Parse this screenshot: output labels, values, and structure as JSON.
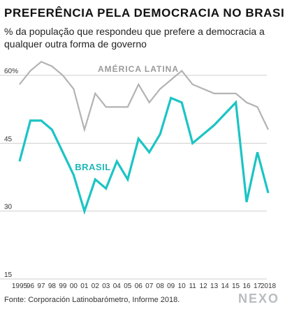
{
  "header": {
    "title": "PREFERÊNCIA PELA DEMOCRACIA NO BRASIL",
    "subtitle": "% da população que respondeu que prefere a democracia a qualquer outra forma de governo"
  },
  "footer": {
    "source": "Fonte: Corporación Latinobarómetro, Informe 2018.",
    "brand": "NEXO"
  },
  "chart_data": {
    "type": "line",
    "title": "PREFERÊNCIA PELA DEMOCRACIA NO BRASIL",
    "subtitle": "% da população que respondeu que prefere a democracia a qualquer outra forma de governo",
    "xlabel": "",
    "ylabel": "",
    "x": [
      1995,
      1996,
      1997,
      1998,
      1999,
      2000,
      2001,
      2002,
      2003,
      2004,
      2005,
      2006,
      2007,
      2008,
      2009,
      2010,
      2011,
      2013,
      2015,
      2016,
      2017,
      2018
    ],
    "x_tick_labels": [
      "1995",
      "96",
      "97",
      "98",
      "99",
      "00",
      "01",
      "02",
      "03",
      "04",
      "05",
      "06",
      "07",
      "08",
      "09",
      "10",
      "11",
      "12",
      "13",
      "14",
      "15",
      "16",
      "17",
      "2018"
    ],
    "x_tick_years": [
      1995,
      1996,
      1997,
      1998,
      1999,
      2000,
      2001,
      2002,
      2003,
      2004,
      2005,
      2006,
      2007,
      2008,
      2009,
      2010,
      2011,
      2012,
      2013,
      2014,
      2015,
      2016,
      2017,
      2018
    ],
    "xlim": [
      1995,
      2018
    ],
    "ylim": [
      15,
      60
    ],
    "y_ticks": [
      15,
      30,
      45,
      60
    ],
    "y_tick_labels": [
      "15",
      "30",
      "45",
      "60%"
    ],
    "grid": true,
    "series": [
      {
        "name": "AMÉRICA LATINA",
        "color": "#b3b3b3",
        "values": [
          58,
          61,
          63,
          62,
          60,
          57,
          48,
          56,
          53,
          53,
          53,
          58,
          54,
          57,
          59,
          61,
          58,
          56,
          56,
          54,
          53,
          48
        ]
      },
      {
        "name": "BRASIL",
        "color": "#1cc4c4",
        "values": [
          41,
          50,
          50,
          48,
          43,
          38,
          30,
          37,
          35,
          41,
          37,
          46,
          43,
          47,
          55,
          54,
          45,
          49,
          54,
          32,
          43,
          34
        ]
      }
    ]
  }
}
